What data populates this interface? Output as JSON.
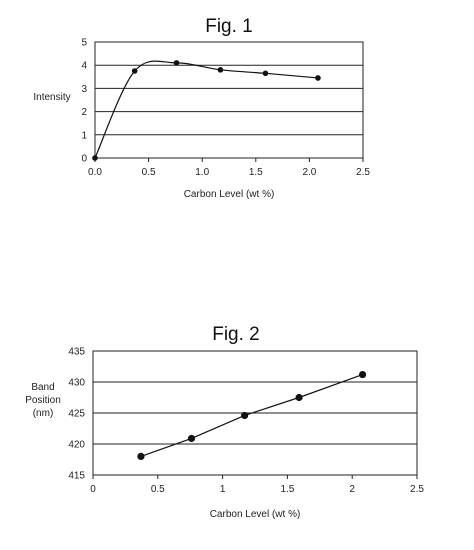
{
  "chart_data": [
    {
      "type": "line",
      "title": "Fig. 1",
      "xlabel": "Carbon Level (wt %)",
      "ylabel": "Intensity",
      "xlim": [
        0.0,
        2.5
      ],
      "ylim": [
        0,
        5
      ],
      "x_ticks": [
        "0.0",
        "0.5",
        "1.0",
        "1.5",
        "2.0",
        "2.5"
      ],
      "y_ticks": [
        "0",
        "1",
        "2",
        "3",
        "4",
        "5"
      ],
      "grid": true,
      "smooth": true,
      "series": [
        {
          "x": [
            0.0,
            0.37,
            0.76,
            1.17,
            1.59,
            2.08
          ],
          "y": [
            0.0,
            3.75,
            4.1,
            3.8,
            3.65,
            3.45
          ]
        }
      ]
    },
    {
      "type": "line",
      "title": "Fig. 2",
      "xlabel": "Carbon Level (wt %)",
      "ylabel": "Band Position (nm)",
      "xlim": [
        0,
        2.5
      ],
      "ylim": [
        415,
        435
      ],
      "x_ticks": [
        "0",
        "0.5",
        "1",
        "1.5",
        "2",
        "2.5"
      ],
      "y_ticks": [
        "415",
        "420",
        "425",
        "430",
        "435"
      ],
      "grid": true,
      "smooth": false,
      "series": [
        {
          "x": [
            0.37,
            0.76,
            1.17,
            1.59,
            2.08
          ],
          "y": [
            418.0,
            420.9,
            424.6,
            427.5,
            431.2
          ]
        }
      ]
    }
  ]
}
